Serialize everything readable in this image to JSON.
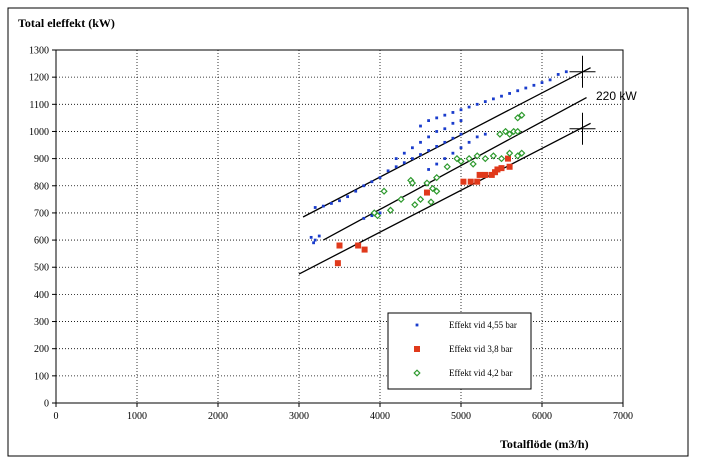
{
  "chart_data": {
    "type": "scatter",
    "title": "Total eleffekt (kW)",
    "xlabel": "Totalflöde (m3/h)",
    "ylabel": "Total eleffekt (kW)",
    "xlim": [
      0,
      7000
    ],
    "ylim": [
      0,
      1300
    ],
    "x_ticks": [
      0,
      1000,
      2000,
      3000,
      4000,
      5000,
      6000,
      7000
    ],
    "y_ticks": [
      0,
      100,
      200,
      300,
      400,
      500,
      600,
      700,
      800,
      900,
      1000,
      1100,
      1200,
      1300
    ],
    "grid": true,
    "legend_position": "bottom-right",
    "annotation": "220 kW",
    "series": [
      {
        "name": "Effekt vid 4,55 bar",
        "marker": "dot",
        "color": "#1a3ccc",
        "points": [
          [
            3150,
            610
          ],
          [
            3200,
            600
          ],
          [
            3250,
            615
          ],
          [
            3180,
            590
          ],
          [
            3200,
            720
          ],
          [
            3300,
            725
          ],
          [
            3400,
            735
          ],
          [
            3500,
            745
          ],
          [
            3600,
            760
          ],
          [
            3700,
            780
          ],
          [
            3800,
            800
          ],
          [
            3900,
            815
          ],
          [
            4000,
            830
          ],
          [
            4100,
            855
          ],
          [
            4200,
            870
          ],
          [
            4300,
            885
          ],
          [
            4400,
            900
          ],
          [
            4500,
            915
          ],
          [
            4600,
            930
          ],
          [
            4700,
            945
          ],
          [
            4800,
            960
          ],
          [
            4900,
            975
          ],
          [
            5000,
            990
          ],
          [
            3900,
            690
          ],
          [
            4000,
            700
          ],
          [
            3800,
            680
          ],
          [
            4200,
            900
          ],
          [
            4300,
            920
          ],
          [
            4400,
            940
          ],
          [
            4500,
            960
          ],
          [
            4600,
            980
          ],
          [
            4700,
            1000
          ],
          [
            4800,
            1010
          ],
          [
            4900,
            1030
          ],
          [
            5000,
            1040
          ],
          [
            4500,
            1020
          ],
          [
            4600,
            1040
          ],
          [
            4700,
            1050
          ],
          [
            4800,
            1060
          ],
          [
            4900,
            1070
          ],
          [
            5000,
            1080
          ],
          [
            5100,
            1090
          ],
          [
            5200,
            1100
          ],
          [
            5300,
            1110
          ],
          [
            5400,
            1120
          ],
          [
            5500,
            1130
          ],
          [
            5600,
            1140
          ],
          [
            5700,
            1150
          ],
          [
            5800,
            1160
          ],
          [
            5900,
            1170
          ],
          [
            6000,
            1180
          ],
          [
            6100,
            1190
          ],
          [
            6200,
            1210
          ],
          [
            6300,
            1220
          ],
          [
            4600,
            860
          ],
          [
            4700,
            880
          ],
          [
            4800,
            900
          ],
          [
            4900,
            920
          ],
          [
            5000,
            940
          ],
          [
            5100,
            960
          ],
          [
            5200,
            980
          ],
          [
            5300,
            990
          ]
        ]
      },
      {
        "name": "Effekt vid 3,8 bar",
        "marker": "square",
        "color": "#e0391b",
        "points": [
          [
            3480,
            515
          ],
          [
            3500,
            580
          ],
          [
            3730,
            580
          ],
          [
            3810,
            565
          ],
          [
            4580,
            775
          ],
          [
            5030,
            815
          ],
          [
            5120,
            815
          ],
          [
            5200,
            815
          ],
          [
            5230,
            840
          ],
          [
            5300,
            840
          ],
          [
            5380,
            840
          ],
          [
            5420,
            850
          ],
          [
            5450,
            860
          ],
          [
            5500,
            865
          ],
          [
            5600,
            870
          ],
          [
            5580,
            900
          ]
        ]
      },
      {
        "name": "Effekt vid 4,2 bar",
        "marker": "diamond",
        "color": "#2e9a2e",
        "points": [
          [
            3930,
            700
          ],
          [
            3970,
            690
          ],
          [
            4050,
            780
          ],
          [
            4130,
            710
          ],
          [
            4260,
            750
          ],
          [
            4380,
            820
          ],
          [
            4400,
            810
          ],
          [
            4430,
            730
          ],
          [
            4500,
            750
          ],
          [
            4580,
            810
          ],
          [
            4630,
            740
          ],
          [
            4650,
            790
          ],
          [
            4700,
            780
          ],
          [
            4700,
            830
          ],
          [
            4830,
            870
          ],
          [
            4950,
            900
          ],
          [
            5000,
            890
          ],
          [
            5100,
            900
          ],
          [
            5150,
            880
          ],
          [
            5200,
            910
          ],
          [
            5300,
            900
          ],
          [
            5400,
            910
          ],
          [
            5500,
            900
          ],
          [
            5600,
            920
          ],
          [
            5700,
            910
          ],
          [
            5750,
            920
          ],
          [
            5480,
            990
          ],
          [
            5550,
            1000
          ],
          [
            5600,
            990
          ],
          [
            5650,
            1000
          ],
          [
            5700,
            1000
          ],
          [
            5700,
            1050
          ],
          [
            5750,
            1060
          ]
        ]
      }
    ],
    "reference_lines": [
      {
        "x": [
          3000,
          6600
        ],
        "y": [
          475,
          1030
        ]
      },
      {
        "x": [
          3300,
          6550
        ],
        "y": [
          600,
          1125
        ]
      },
      {
        "x": [
          3050,
          6600
        ],
        "y": [
          685,
          1235
        ]
      }
    ],
    "crosshairs": [
      {
        "x": 6500,
        "y": 1220
      },
      {
        "x": 6500,
        "y": 1010
      }
    ]
  }
}
